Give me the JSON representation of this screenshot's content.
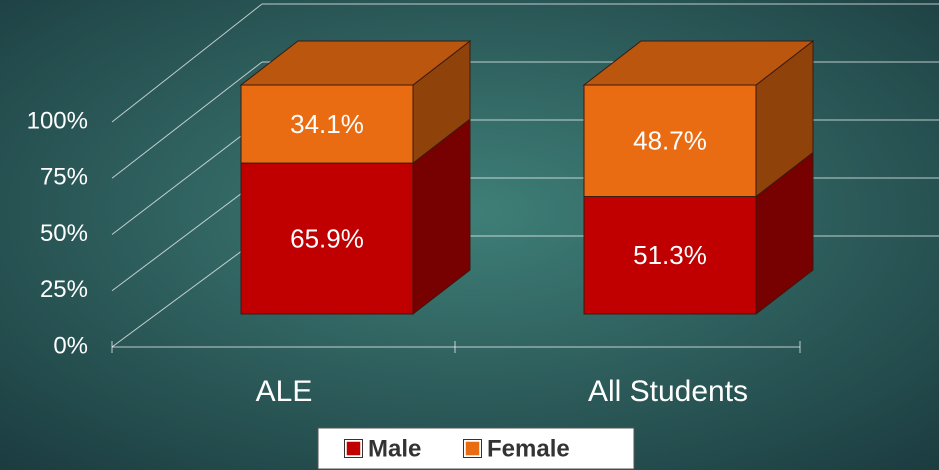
{
  "chart_data": {
    "type": "bar3d_stacked",
    "categories": [
      "ALE",
      "All Students"
    ],
    "series": [
      {
        "name": "Male",
        "color": "#c00000",
        "values": [
          65.9,
          51.3
        ],
        "value_labels": [
          "65.9%",
          "51.3%"
        ]
      },
      {
        "name": "Female",
        "color": "#e96b12",
        "values": [
          34.1,
          48.7
        ],
        "value_labels": [
          "34.1%",
          "48.7%"
        ]
      }
    ],
    "ylim": [
      0,
      100
    ],
    "yticks": [
      {
        "value": 0,
        "label": "0%"
      },
      {
        "value": 25,
        "label": "25%"
      },
      {
        "value": 50,
        "label": "50%"
      },
      {
        "value": 75,
        "label": "75%"
      },
      {
        "value": 100,
        "label": "100%"
      }
    ],
    "grid": true,
    "legend": "bottom"
  }
}
